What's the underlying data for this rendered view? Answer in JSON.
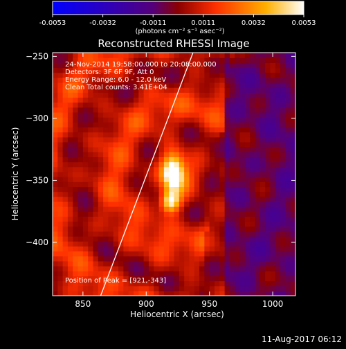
{
  "chart_data": {
    "type": "heatmap",
    "title": "Reconstructed RHESSI Image",
    "xlabel": "Heliocentric X (arcsec)",
    "ylabel": "Heliocentric Y (arcsec)",
    "xlim": [
      826,
      1018
    ],
    "ylim": [
      -443,
      -247
    ],
    "x_ticks": [
      850,
      900,
      950,
      1000
    ],
    "y_ticks": [
      -250,
      -300,
      -350,
      -400
    ],
    "colorbar": {
      "min": -0.0053,
      "max": 0.0053,
      "ticks": [
        "-0.0053",
        "-0.0032",
        "-0.0011",
        "0.0011",
        "0.0032",
        "0.0053"
      ],
      "unit_label": "(photons cm⁻² s⁻¹ asec⁻²)",
      "colors": [
        "#0000ff",
        "#55007a",
        "#8a0000",
        "#ff3000",
        "#ffb000",
        "#ffffff"
      ]
    },
    "info_lines": [
      "24-Nov-2014 19:58:00.000 to 20:08:00.000",
      "Detectors: 3F 6F 9F, Att 0",
      "Energy Range: 6.0 - 12.0 keV",
      "Clean     Total counts: 3.41E+04"
    ],
    "peak_label": "Position of Peak = [921,-343]",
    "peak": [
      921,
      -343
    ],
    "secondary_source": [
      919,
      -367
    ],
    "limb_line": [
      [
        864,
        -443
      ],
      [
        937,
        -247
      ]
    ],
    "timestamp": "11-Aug-2017 06:12"
  }
}
